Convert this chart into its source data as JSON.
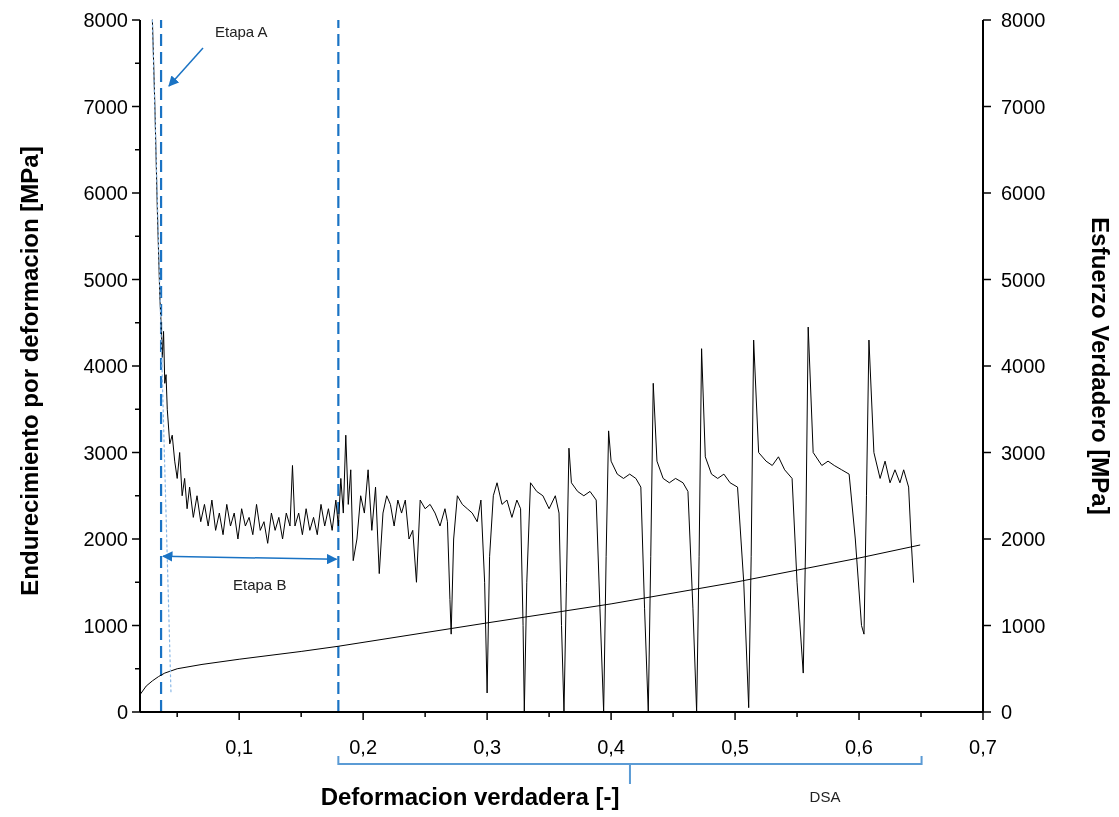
{
  "chart_data": {
    "type": "line",
    "xlabel": "Deformacion verdadera [-]",
    "ylabel": "Endurecimiento por deformacion [MPa]",
    "y2label": "Esfuerzo Verdadero [MPa]",
    "xlim": [
      0.02,
      0.7
    ],
    "xticks": [
      {
        "value": 0.05,
        "label": null
      },
      {
        "value": 0.1,
        "label": "0,1"
      },
      {
        "value": 0.15,
        "label": null
      },
      {
        "value": 0.2,
        "label": "0,2"
      },
      {
        "value": 0.25,
        "label": null
      },
      {
        "value": 0.3,
        "label": "0,3"
      },
      {
        "value": 0.35,
        "label": null
      },
      {
        "value": 0.4,
        "label": "0,4"
      },
      {
        "value": 0.45,
        "label": null
      },
      {
        "value": 0.5,
        "label": "0,5"
      },
      {
        "value": 0.55,
        "label": null
      },
      {
        "value": 0.6,
        "label": "0,6"
      },
      {
        "value": 0.65,
        "label": null
      },
      {
        "value": 0.7,
        "label": "0,7"
      }
    ],
    "ylim": [
      0,
      8000
    ],
    "yticks": [
      0,
      {
        "value": 500,
        "label": null
      },
      1000,
      {
        "value": 1500,
        "label": null
      },
      2000,
      {
        "value": 2500,
        "label": null
      },
      3000,
      {
        "value": 3500,
        "label": null
      },
      4000,
      {
        "value": 4500,
        "label": null
      },
      5000,
      {
        "value": 5500,
        "label": null
      },
      6000,
      {
        "value": 6500,
        "label": null
      },
      7000,
      {
        "value": 7500,
        "label": null
      },
      8000
    ],
    "y2lim": [
      0,
      8000
    ],
    "y2ticks": [
      0,
      1000,
      2000,
      3000,
      4000,
      5000,
      6000,
      7000,
      8000
    ],
    "grid": false,
    "marker": "none",
    "series": [
      {
        "color": "#000000",
        "line_style": "solid",
        "x": [
          0.03,
          0.032,
          0.034,
          0.036,
          0.037,
          0.038,
          0.039,
          0.04,
          0.041,
          0.042,
          0.044,
          0.046,
          0.048,
          0.05,
          0.052,
          0.054,
          0.056,
          0.058,
          0.06,
          0.063,
          0.066,
          0.069,
          0.072,
          0.075,
          0.078,
          0.081,
          0.084,
          0.087,
          0.09,
          0.093,
          0.096,
          0.099,
          0.102,
          0.105,
          0.108,
          0.111,
          0.114,
          0.117,
          0.12,
          0.123,
          0.126,
          0.129,
          0.132,
          0.135,
          0.138,
          0.141,
          0.143,
          0.145,
          0.148,
          0.151,
          0.154,
          0.157,
          0.16,
          0.163,
          0.166,
          0.169,
          0.172,
          0.175,
          0.178,
          0.18,
          0.182,
          0.184,
          0.186,
          0.188,
          0.19,
          0.192,
          0.195,
          0.198,
          0.201,
          0.204,
          0.207,
          0.21,
          0.213,
          0.216,
          0.219,
          0.222,
          0.225,
          0.228,
          0.231,
          0.234,
          0.237,
          0.24,
          0.243,
          0.246,
          0.25,
          0.254,
          0.258,
          0.262,
          0.266,
          0.268,
          0.27,
          0.271,
          0.273,
          0.276,
          0.28,
          0.284,
          0.288,
          0.292,
          0.295,
          0.298,
          0.3,
          0.302,
          0.305,
          0.308,
          0.312,
          0.316,
          0.32,
          0.324,
          0.327,
          0.329,
          0.33,
          0.332,
          0.335,
          0.34,
          0.345,
          0.35,
          0.355,
          0.358,
          0.36,
          0.362,
          0.364,
          0.366,
          0.368,
          0.373,
          0.378,
          0.383,
          0.388,
          0.391,
          0.394,
          0.396,
          0.398,
          0.4,
          0.405,
          0.41,
          0.415,
          0.42,
          0.424,
          0.427,
          0.43,
          0.432,
          0.434,
          0.437,
          0.442,
          0.447,
          0.452,
          0.458,
          0.462,
          0.466,
          0.469,
          0.471,
          0.473,
          0.476,
          0.481,
          0.486,
          0.491,
          0.496,
          0.502,
          0.507,
          0.511,
          0.513,
          0.515,
          0.519,
          0.525,
          0.53,
          0.535,
          0.54,
          0.546,
          0.55,
          0.555,
          0.557,
          0.559,
          0.563,
          0.57,
          0.575,
          0.58,
          0.586,
          0.592,
          0.597,
          0.602,
          0.604,
          0.606,
          0.608,
          0.612,
          0.617,
          0.621,
          0.625,
          0.629,
          0.633,
          0.636,
          0.64,
          0.642,
          0.644
        ],
        "values": [
          8000,
          7000,
          5800,
          4800,
          4500,
          4100,
          4400,
          3800,
          3900,
          3500,
          3100,
          3200,
          2900,
          2700,
          3000,
          2500,
          2700,
          2350,
          2600,
          2250,
          2500,
          2200,
          2400,
          2150,
          2450,
          2100,
          2300,
          2050,
          2400,
          2150,
          2300,
          2000,
          2350,
          2150,
          2250,
          2050,
          2400,
          2100,
          2200,
          1950,
          2300,
          2100,
          2250,
          2000,
          2300,
          2150,
          2850,
          2150,
          2300,
          2050,
          2350,
          2100,
          2250,
          2050,
          2400,
          2150,
          2350,
          2100,
          2450,
          2150,
          2700,
          2300,
          3200,
          2400,
          2800,
          1750,
          2000,
          2500,
          2300,
          2800,
          2100,
          2600,
          1600,
          2300,
          2500,
          2400,
          2150,
          2450,
          2300,
          2450,
          2000,
          2100,
          1500,
          2450,
          2350,
          2400,
          2300,
          2150,
          2350,
          2200,
          1300,
          900,
          2000,
          2500,
          2400,
          2350,
          2300,
          2200,
          2450,
          1500,
          220,
          1800,
          2500,
          2650,
          2400,
          2450,
          2250,
          2450,
          2350,
          1000,
          0,
          1500,
          2650,
          2550,
          2500,
          2350,
          2500,
          2300,
          1000,
          0,
          1500,
          3050,
          2650,
          2550,
          2500,
          2550,
          2450,
          1200,
          0,
          1800,
          3250,
          2900,
          2750,
          2700,
          2750,
          2700,
          2600,
          1200,
          0,
          1800,
          3800,
          2900,
          2700,
          2650,
          2700,
          2650,
          2550,
          1200,
          0,
          1800,
          4200,
          2950,
          2750,
          2700,
          2750,
          2650,
          2600,
          1500,
          50,
          1800,
          4300,
          3000,
          2900,
          2850,
          2950,
          2800,
          2700,
          1500,
          450,
          2000,
          4450,
          3000,
          2850,
          2900,
          2850,
          2800,
          2750,
          2000,
          1000,
          900,
          2500,
          4300,
          3000,
          2700,
          2900,
          2650,
          2800,
          2650,
          2800,
          2600,
          2000,
          1500
        ]
      },
      {
        "color": "#000000",
        "line_style": "solid",
        "axis": "y2",
        "x": [
          0.02,
          0.025,
          0.03,
          0.035,
          0.04,
          0.05,
          0.07,
          0.1,
          0.15,
          0.18,
          0.3,
          0.4,
          0.5,
          0.6,
          0.649
        ],
        "values": [
          200,
          300,
          360,
          410,
          450,
          500,
          550,
          610,
          700,
          760,
          1030,
          1250,
          1500,
          1780,
          1930
        ]
      },
      {
        "color": "#8ab8e6",
        "line_style": "dotted",
        "x": [
          0.03,
          0.045
        ],
        "values": [
          8000,
          220
        ]
      }
    ],
    "ref_lines": [
      {
        "axis": "x",
        "value": 0.037,
        "color": "#1a73c4",
        "line_style": "dashed"
      },
      {
        "axis": "x",
        "value": 0.18,
        "color": "#1a73c4",
        "line_style": "dashed"
      }
    ],
    "annotations": [
      "Etapa A",
      "Etapa B",
      "DSA"
    ]
  }
}
